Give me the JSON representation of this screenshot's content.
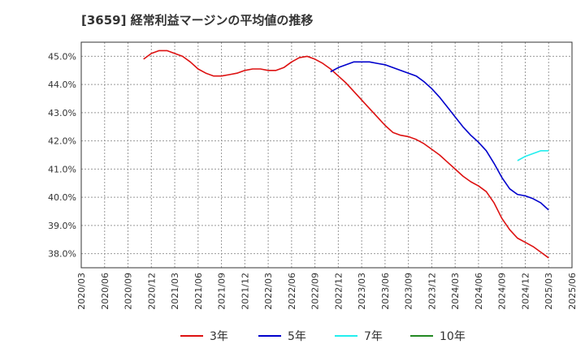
{
  "chart_data": {
    "type": "line",
    "title": "[3659]  経常利益マージンの平均値の推移",
    "xlabel": "",
    "ylabel": "",
    "x_ticks": [
      "2020/03",
      "2020/06",
      "2020/09",
      "2020/12",
      "2021/03",
      "2021/06",
      "2021/09",
      "2021/12",
      "2022/03",
      "2022/06",
      "2022/09",
      "2022/12",
      "2023/03",
      "2023/06",
      "2023/09",
      "2023/12",
      "2024/03",
      "2024/06",
      "2024/09",
      "2024/12",
      "2025/03",
      "2025/06"
    ],
    "y_ticks": [
      "38.0%",
      "39.0%",
      "40.0%",
      "41.0%",
      "42.0%",
      "43.0%",
      "44.0%",
      "45.0%"
    ],
    "ylim": [
      37.5,
      45.5
    ],
    "grid": true,
    "legend_position": "bottom",
    "series": [
      {
        "name": "3年",
        "color": "#dd1111",
        "points": [
          [
            "2020/11",
            44.9
          ],
          [
            "2020/12",
            45.1
          ],
          [
            "2021/01",
            45.2
          ],
          [
            "2021/02",
            45.2
          ],
          [
            "2021/03",
            45.1
          ],
          [
            "2021/04",
            45.0
          ],
          [
            "2021/05",
            44.8
          ],
          [
            "2021/06",
            44.55
          ],
          [
            "2021/07",
            44.4
          ],
          [
            "2021/08",
            44.3
          ],
          [
            "2021/09",
            44.3
          ],
          [
            "2021/10",
            44.35
          ],
          [
            "2021/11",
            44.4
          ],
          [
            "2021/12",
            44.5
          ],
          [
            "2022/01",
            44.55
          ],
          [
            "2022/02",
            44.55
          ],
          [
            "2022/03",
            44.5
          ],
          [
            "2022/04",
            44.5
          ],
          [
            "2022/05",
            44.6
          ],
          [
            "2022/06",
            44.8
          ],
          [
            "2022/07",
            44.95
          ],
          [
            "2022/08",
            45.0
          ],
          [
            "2022/09",
            44.9
          ],
          [
            "2022/10",
            44.75
          ],
          [
            "2022/11",
            44.55
          ],
          [
            "2022/12",
            44.3
          ],
          [
            "2023/01",
            44.05
          ],
          [
            "2023/02",
            43.75
          ],
          [
            "2023/03",
            43.45
          ],
          [
            "2023/04",
            43.15
          ],
          [
            "2023/05",
            42.85
          ],
          [
            "2023/06",
            42.55
          ],
          [
            "2023/07",
            42.3
          ],
          [
            "2023/08",
            42.2
          ],
          [
            "2023/09",
            42.15
          ],
          [
            "2023/10",
            42.05
          ],
          [
            "2023/11",
            41.9
          ],
          [
            "2023/12",
            41.7
          ],
          [
            "2024/01",
            41.5
          ],
          [
            "2024/02",
            41.25
          ],
          [
            "2024/03",
            41.0
          ],
          [
            "2024/04",
            40.75
          ],
          [
            "2024/05",
            40.55
          ],
          [
            "2024/06",
            40.4
          ],
          [
            "2024/07",
            40.2
          ],
          [
            "2024/08",
            39.8
          ],
          [
            "2024/09",
            39.25
          ],
          [
            "2024/10",
            38.85
          ],
          [
            "2024/11",
            38.55
          ],
          [
            "2024/12",
            38.4
          ],
          [
            "2025/01",
            38.25
          ],
          [
            "2025/02",
            38.05
          ],
          [
            "2025/03",
            37.85
          ]
        ]
      },
      {
        "name": "5年",
        "color": "#0000cc",
        "points": [
          [
            "2022/11",
            44.45
          ],
          [
            "2022/12",
            44.6
          ],
          [
            "2023/01",
            44.7
          ],
          [
            "2023/02",
            44.8
          ],
          [
            "2023/03",
            44.8
          ],
          [
            "2023/04",
            44.8
          ],
          [
            "2023/05",
            44.75
          ],
          [
            "2023/06",
            44.7
          ],
          [
            "2023/07",
            44.6
          ],
          [
            "2023/08",
            44.5
          ],
          [
            "2023/09",
            44.4
          ],
          [
            "2023/10",
            44.3
          ],
          [
            "2023/11",
            44.1
          ],
          [
            "2023/12",
            43.85
          ],
          [
            "2024/01",
            43.55
          ],
          [
            "2024/02",
            43.2
          ],
          [
            "2024/03",
            42.85
          ],
          [
            "2024/04",
            42.5
          ],
          [
            "2024/05",
            42.2
          ],
          [
            "2024/06",
            41.95
          ],
          [
            "2024/07",
            41.65
          ],
          [
            "2024/08",
            41.2
          ],
          [
            "2024/09",
            40.7
          ],
          [
            "2024/10",
            40.3
          ],
          [
            "2024/11",
            40.1
          ],
          [
            "2024/12",
            40.05
          ],
          [
            "2025/01",
            39.95
          ],
          [
            "2025/02",
            39.8
          ],
          [
            "2025/03",
            39.55
          ]
        ]
      },
      {
        "name": "7年",
        "color": "#22eeee",
        "points": [
          [
            "2024/11",
            41.3
          ],
          [
            "2024/12",
            41.45
          ],
          [
            "2025/01",
            41.55
          ],
          [
            "2025/02",
            41.65
          ],
          [
            "2025/03",
            41.65
          ]
        ]
      },
      {
        "name": "10年",
        "color": "#228822",
        "points": []
      }
    ]
  }
}
